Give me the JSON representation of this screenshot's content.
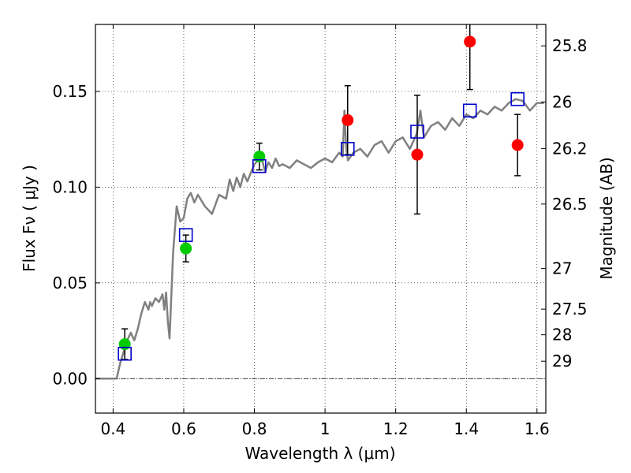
{
  "chart_data": {
    "type": "scatter",
    "xlabel": "Wavelength  λ (μm)",
    "ylabel": "Flux  Fν  ( μJy )",
    "y2label": "Magnitude (AB)",
    "xlim": [
      0.35,
      1.625
    ],
    "ylim": [
      -0.018,
      0.185
    ],
    "x_ticks": [
      {
        "value": 0.4,
        "label": "0.4"
      },
      {
        "value": 0.6,
        "label": "0.6"
      },
      {
        "value": 0.8,
        "label": "0.8"
      },
      {
        "value": 1.0,
        "label": "1"
      },
      {
        "value": 1.2,
        "label": "1.2"
      },
      {
        "value": 1.4,
        "label": "1.4"
      },
      {
        "value": 1.6,
        "label": "1.6"
      }
    ],
    "y_ticks": [
      {
        "value": 0.0,
        "label": "0.00"
      },
      {
        "value": 0.05,
        "label": "0.05"
      },
      {
        "value": 0.1,
        "label": "0.10"
      },
      {
        "value": 0.15,
        "label": "0.15"
      }
    ],
    "y2_ticks": [
      {
        "flux": 0.1738,
        "label": "25.8"
      },
      {
        "flux": 0.1445,
        "label": "26"
      },
      {
        "flux": 0.1202,
        "label": "26.2"
      },
      {
        "flux": 0.0912,
        "label": "26.5"
      },
      {
        "flux": 0.0575,
        "label": "27"
      },
      {
        "flux": 0.0363,
        "label": "27.5"
      },
      {
        "flux": 0.0229,
        "label": "28"
      },
      {
        "flux": 0.0091,
        "label": "29"
      }
    ],
    "grid": true,
    "colors": {
      "model": "#808080",
      "green": "#00cc00",
      "red": "#ff0000",
      "blue": "#0000cc",
      "errorbar": "#000000"
    },
    "series": [
      {
        "kind": "line",
        "x": [
          0.35,
          0.41,
          0.42,
          0.43,
          0.44,
          0.45,
          0.46,
          0.47,
          0.48,
          0.49,
          0.5,
          0.505,
          0.51,
          0.52,
          0.53,
          0.54,
          0.545,
          0.55,
          0.555,
          0.56,
          0.57,
          0.58,
          0.59,
          0.6,
          0.61,
          0.62,
          0.63,
          0.64,
          0.66,
          0.68,
          0.7,
          0.72,
          0.73,
          0.74,
          0.75,
          0.76,
          0.77,
          0.78,
          0.8,
          0.82,
          0.83,
          0.84,
          0.85,
          0.86,
          0.87,
          0.88,
          0.9,
          0.92,
          0.94,
          0.96,
          0.98,
          1.0,
          1.02,
          1.04,
          1.05,
          1.055,
          1.06,
          1.065,
          1.08,
          1.1,
          1.12,
          1.14,
          1.16,
          1.18,
          1.2,
          1.22,
          1.24,
          1.26,
          1.27,
          1.28,
          1.3,
          1.32,
          1.34,
          1.36,
          1.38,
          1.4,
          1.42,
          1.44,
          1.46,
          1.48,
          1.5,
          1.52,
          1.54,
          1.56,
          1.58,
          1.6,
          1.62
        ],
        "y": [
          0.0,
          0.0,
          0.008,
          0.014,
          0.02,
          0.024,
          0.02,
          0.026,
          0.034,
          0.04,
          0.036,
          0.04,
          0.038,
          0.042,
          0.04,
          0.044,
          0.036,
          0.045,
          0.03,
          0.021,
          0.066,
          0.09,
          0.082,
          0.084,
          0.094,
          0.097,
          0.092,
          0.096,
          0.09,
          0.086,
          0.096,
          0.094,
          0.104,
          0.098,
          0.105,
          0.1,
          0.107,
          0.103,
          0.112,
          0.116,
          0.108,
          0.113,
          0.11,
          0.115,
          0.111,
          0.112,
          0.11,
          0.114,
          0.112,
          0.11,
          0.113,
          0.115,
          0.113,
          0.118,
          0.116,
          0.14,
          0.12,
          0.114,
          0.118,
          0.12,
          0.116,
          0.122,
          0.124,
          0.118,
          0.124,
          0.126,
          0.12,
          0.128,
          0.14,
          0.126,
          0.132,
          0.134,
          0.13,
          0.136,
          0.132,
          0.138,
          0.136,
          0.14,
          0.138,
          0.142,
          0.14,
          0.144,
          0.146,
          0.145,
          0.14,
          0.144,
          0.144
        ]
      },
      {
        "kind": "points-circle",
        "color": "green",
        "points": [
          {
            "x": 0.433,
            "y": 0.018,
            "err": 0.008
          },
          {
            "x": 0.606,
            "y": 0.068,
            "err": 0.007
          },
          {
            "x": 0.814,
            "y": 0.116,
            "err": 0.007
          }
        ]
      },
      {
        "kind": "points-circle",
        "color": "red",
        "points": [
          {
            "x": 1.064,
            "y": 0.135,
            "err": 0.018
          },
          {
            "x": 1.261,
            "y": 0.117,
            "err": 0.031
          },
          {
            "x": 1.41,
            "y": 0.176,
            "err": 0.025
          },
          {
            "x": 1.545,
            "y": 0.122,
            "err": 0.016
          }
        ]
      },
      {
        "kind": "points-square",
        "color": "blue",
        "points": [
          {
            "x": 0.433,
            "y": 0.013
          },
          {
            "x": 0.606,
            "y": 0.075
          },
          {
            "x": 0.814,
            "y": 0.111
          },
          {
            "x": 1.064,
            "y": 0.12
          },
          {
            "x": 1.261,
            "y": 0.129
          },
          {
            "x": 1.41,
            "y": 0.14
          },
          {
            "x": 1.545,
            "y": 0.146
          }
        ]
      }
    ]
  }
}
